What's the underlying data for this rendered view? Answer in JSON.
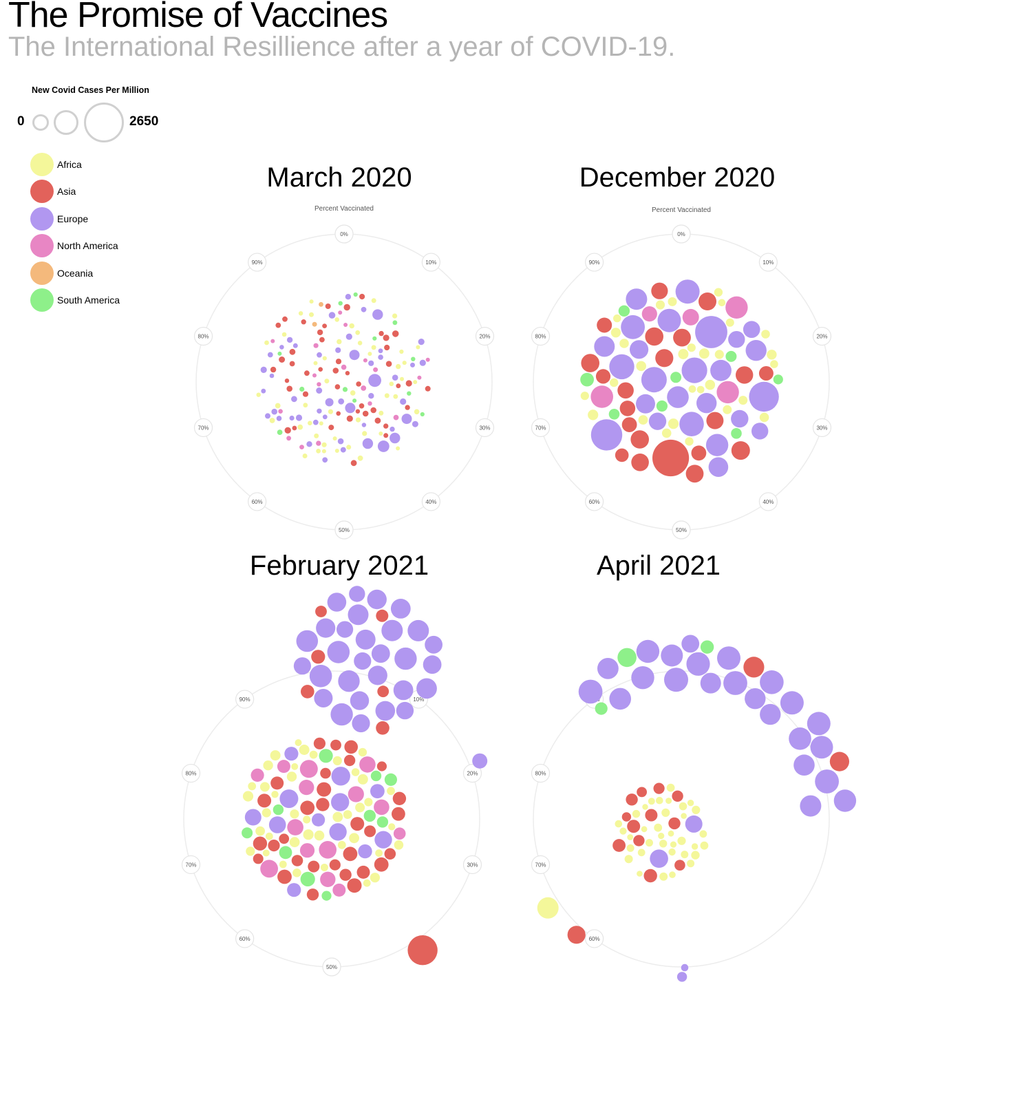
{
  "page": {
    "title": "The Promise of Vaccines",
    "subtitle": "The International Resillience after a year of COVID-19."
  },
  "size_legend": {
    "title": "New Covid Cases Per Million",
    "min_label": "0",
    "max_label": "2650"
  },
  "colors": {
    "Africa": "#f4f79a",
    "Asia": "#e2625b",
    "Europe": "#b197f0",
    "North America": "#e886c4",
    "Oceania": "#f4b97c",
    "South America": "#8ef08a",
    "Unknown": "#e2e2e2"
  },
  "legend": [
    {
      "label": "Africa",
      "color": "#f4f79a"
    },
    {
      "label": "Asia",
      "color": "#e2625b"
    },
    {
      "label": "Europe",
      "color": "#b197f0"
    },
    {
      "label": "North America",
      "color": "#e886c4"
    },
    {
      "label": "Oceania",
      "color": "#f4b97c"
    },
    {
      "label": "South America",
      "color": "#8ef08a"
    }
  ],
  "chart_data": [
    {
      "type": "scatter",
      "title": "March 2020",
      "axis_label": "Percent Vaccinated",
      "ticks": [
        "0%",
        "10%",
        "20%",
        "30%",
        "40%",
        "50%",
        "60%",
        "70%",
        "80%",
        "90%"
      ],
      "bubbles": [
        {
          "region": "Europe",
          "percent_vaccinated": 0,
          "cases_per_million": 320,
          "count": 1
        },
        {
          "region": "Europe",
          "percent_vaccinated": 0,
          "cases_per_million": 200,
          "count": 8
        },
        {
          "region": "Europe",
          "percent_vaccinated": 0,
          "cases_per_million": 60,
          "count": 40
        },
        {
          "region": "Asia",
          "percent_vaccinated": 0,
          "cases_per_million": 60,
          "count": 45
        },
        {
          "region": "Africa",
          "percent_vaccinated": 0,
          "cases_per_million": 40,
          "count": 50
        },
        {
          "region": "North America",
          "percent_vaccinated": 0,
          "cases_per_million": 40,
          "count": 18
        },
        {
          "region": "South America",
          "percent_vaccinated": 0,
          "cases_per_million": 40,
          "count": 12
        },
        {
          "region": "Oceania",
          "percent_vaccinated": 0,
          "cases_per_million": 40,
          "count": 2
        }
      ]
    },
    {
      "type": "scatter",
      "title": "December 2020",
      "axis_label": "Percent Vaccinated",
      "ticks": [
        "0%",
        "10%",
        "20%",
        "30%",
        "40%",
        "50%",
        "60%",
        "70%",
        "80%",
        "90%"
      ],
      "bubbles": [
        {
          "region": "Asia",
          "percent_vaccinated": 0,
          "cases_per_million": 1850,
          "count": 1
        },
        {
          "region": "Europe",
          "percent_vaccinated": 0,
          "cases_per_million": 1500,
          "count": 3
        },
        {
          "region": "Europe",
          "percent_vaccinated": 0,
          "cases_per_million": 900,
          "count": 22
        },
        {
          "region": "Asia",
          "percent_vaccinated": 0,
          "cases_per_million": 500,
          "count": 22
        },
        {
          "region": "North America",
          "percent_vaccinated": 0,
          "cases_per_million": 700,
          "count": 5
        },
        {
          "region": "Africa",
          "percent_vaccinated": 0,
          "cases_per_million": 150,
          "count": 30
        },
        {
          "region": "South America",
          "percent_vaccinated": 0,
          "cases_per_million": 300,
          "count": 9
        }
      ]
    },
    {
      "type": "scatter",
      "title": "February 2021",
      "ticks": [
        "10%",
        "20%",
        "30%",
        "50%",
        "60%",
        "70%",
        "80%",
        "90%"
      ],
      "bubbles": [
        {
          "region": "Europe",
          "percent_vaccinated": 2,
          "cases_per_million": 700,
          "count": 35
        },
        {
          "region": "Asia",
          "percent_vaccinated": 2,
          "cases_per_million": 300,
          "count": 10
        },
        {
          "region": "Africa",
          "percent_vaccinated": 0,
          "cases_per_million": 150,
          "count": 60
        },
        {
          "region": "Asia",
          "percent_vaccinated": 0,
          "cases_per_million": 300,
          "count": 30
        },
        {
          "region": "North America",
          "percent_vaccinated": 0,
          "cases_per_million": 450,
          "count": 14
        },
        {
          "region": "Europe",
          "percent_vaccinated": 0,
          "cases_per_million": 500,
          "count": 12
        },
        {
          "region": "South America",
          "percent_vaccinated": 0,
          "cases_per_million": 300,
          "count": 10
        },
        {
          "region": "Asia",
          "percent_vaccinated": 45,
          "cases_per_million": 1300,
          "count": 1
        },
        {
          "region": "Europe",
          "percent_vaccinated": 22,
          "cases_per_million": 500,
          "count": 1
        }
      ]
    },
    {
      "type": "scatter",
      "title": "April 2021",
      "ticks": [
        "60%",
        "70%",
        "80%",
        "90%"
      ],
      "bubbles": [
        {
          "region": "Europe",
          "percent_vaccinated": 10,
          "cases_per_million": 800,
          "count": 45
        },
        {
          "region": "Asia",
          "percent_vaccinated": 8,
          "cases_per_million": 600,
          "count": 20
        },
        {
          "region": "South America",
          "percent_vaccinated": 8,
          "cases_per_million": 500,
          "count": 10
        },
        {
          "region": "Africa",
          "percent_vaccinated": 0,
          "cases_per_million": 100,
          "count": 35
        },
        {
          "region": "Asia",
          "percent_vaccinated": 0,
          "cases_per_million": 250,
          "count": 12
        },
        {
          "region": "Europe",
          "percent_vaccinated": 0,
          "cases_per_million": 500,
          "count": 2
        },
        {
          "region": "Europe",
          "percent_vaccinated": 60,
          "cases_per_million": 150,
          "count": 2
        },
        {
          "region": "Asia",
          "percent_vaccinated": 60,
          "cases_per_million": 800,
          "count": 1
        },
        {
          "region": "Africa",
          "percent_vaccinated": 65,
          "cases_per_million": 700,
          "count": 1
        }
      ]
    }
  ]
}
